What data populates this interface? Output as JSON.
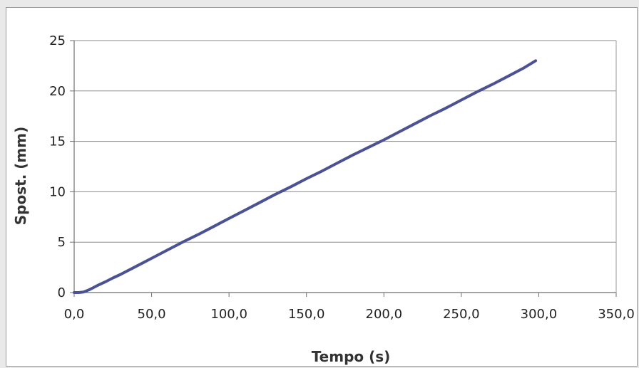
{
  "chart_data": {
    "type": "line",
    "title": "",
    "xlabel": "Tempo (s)",
    "ylabel": "Spost. (mm)",
    "xlim": [
      0,
      350
    ],
    "ylim": [
      0,
      25
    ],
    "x_ticks": [
      "0,0",
      "50,0",
      "100,0",
      "150,0",
      "200,0",
      "250,0",
      "300,0",
      "350,0"
    ],
    "y_ticks": [
      "0",
      "5",
      "10",
      "15",
      "20",
      "25"
    ],
    "grid": "horizontal",
    "legend": "none",
    "series": [
      {
        "color": "#4a5294",
        "x": [
          0,
          3,
          6,
          10,
          15,
          20,
          25,
          30,
          40,
          50,
          60,
          70,
          80,
          90,
          100,
          110,
          120,
          130,
          140,
          150,
          160,
          170,
          180,
          190,
          200,
          210,
          220,
          230,
          240,
          250,
          260,
          270,
          280,
          290,
          298
        ],
        "y": [
          0,
          0,
          0.05,
          0.3,
          0.7,
          1.05,
          1.45,
          1.8,
          2.6,
          3.4,
          4.2,
          5.0,
          5.75,
          6.55,
          7.35,
          8.15,
          8.95,
          9.75,
          10.5,
          11.3,
          12.05,
          12.85,
          13.65,
          14.4,
          15.15,
          15.95,
          16.75,
          17.55,
          18.3,
          19.1,
          19.9,
          20.65,
          21.45,
          22.25,
          23.0
        ]
      }
    ]
  }
}
